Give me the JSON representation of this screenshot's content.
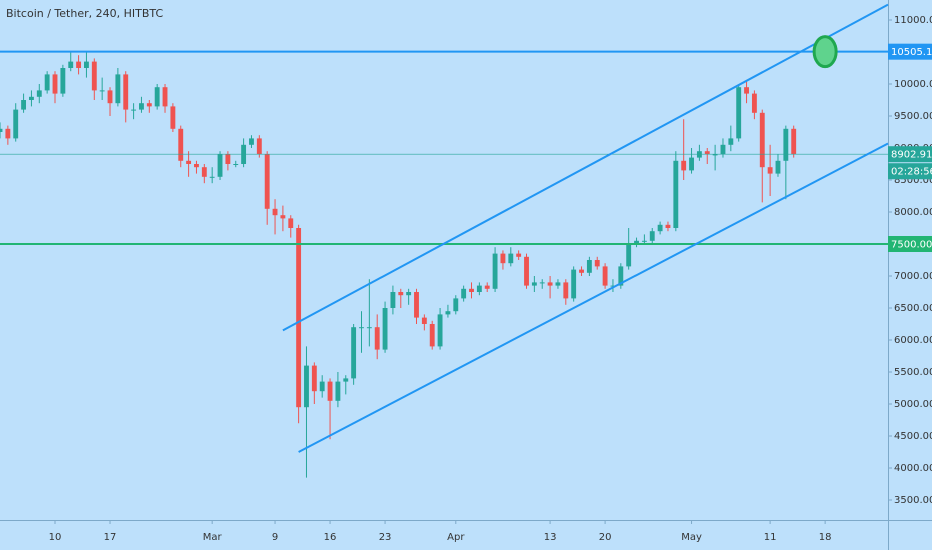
{
  "chart_data": {
    "type": "candlestick",
    "title": "Bitcoin / Tether, 240, HITBTC",
    "x": [
      "Feb 3",
      "Feb 4",
      "Feb 5",
      "Feb 6",
      "Feb 7",
      "Feb 8",
      "Feb 9",
      "Feb 10",
      "Feb 11",
      "Feb 12",
      "Feb 13",
      "Feb 14",
      "Feb 15",
      "Feb 16",
      "Feb 17",
      "Feb 18",
      "Feb 19",
      "Feb 20",
      "Feb 21",
      "Feb 22",
      "Feb 23",
      "Feb 24",
      "Feb 25",
      "Feb 26",
      "Feb 27",
      "Feb 28",
      "Feb 29",
      "Mar 1",
      "Mar 2",
      "Mar 3",
      "Mar 4",
      "Mar 5",
      "Mar 6",
      "Mar 7",
      "Mar 8",
      "Mar 9",
      "Mar 10",
      "Mar 11",
      "Mar 12",
      "Mar 13",
      "Mar 14",
      "Mar 15",
      "Mar 16",
      "Mar 17",
      "Mar 18",
      "Mar 19",
      "Mar 20",
      "Mar 21",
      "Mar 22",
      "Mar 23",
      "Mar 24",
      "Mar 25",
      "Mar 26",
      "Mar 27",
      "Mar 28",
      "Mar 29",
      "Mar 30",
      "Mar 31",
      "Apr 1",
      "Apr 2",
      "Apr 3",
      "Apr 4",
      "Apr 5",
      "Apr 6",
      "Apr 7",
      "Apr 8",
      "Apr 9",
      "Apr 10",
      "Apr 11",
      "Apr 12",
      "Apr 13",
      "Apr 14",
      "Apr 15",
      "Apr 16",
      "Apr 17",
      "Apr 18",
      "Apr 19",
      "Apr 20",
      "Apr 21",
      "Apr 22",
      "Apr 23",
      "Apr 24",
      "Apr 25",
      "Apr 26",
      "Apr 27",
      "Apr 28",
      "Apr 29",
      "Apr 30",
      "May 1",
      "May 2",
      "May 3",
      "May 4",
      "May 5",
      "May 6",
      "May 7",
      "May 8",
      "May 9",
      "May 10",
      "May 11",
      "May 12",
      "May 13",
      "May 14"
    ],
    "open": [
      9250,
      9300,
      9150,
      9600,
      9750,
      9800,
      9900,
      10150,
      9850,
      10250,
      10350,
      10250,
      10350,
      9900,
      9900,
      9700,
      10150,
      9600,
      9600,
      9700,
      9650,
      9950,
      9650,
      9300,
      8800,
      8750,
      8700,
      8550,
      8550,
      8900,
      8750,
      8750,
      9050,
      9150,
      8900,
      8050,
      7950,
      7900,
      7750,
      4950,
      5600,
      5200,
      5350,
      5050,
      5350,
      5400,
      6200,
      6200,
      6200,
      5850,
      6500,
      6750,
      6700,
      6750,
      6350,
      6250,
      5900,
      6400,
      6450,
      6650,
      6800,
      6750,
      6850,
      6800,
      7350,
      7200,
      7350,
      7300,
      6850,
      6900,
      6900,
      6850,
      6900,
      6650,
      7100,
      7050,
      7250,
      7150,
      6850,
      6850,
      7150,
      7500,
      7550,
      7550,
      7700,
      7800,
      7750,
      8800,
      8650,
      8850,
      8950,
      8900,
      8900,
      9050,
      9150,
      9950,
      9850,
      9550,
      8700,
      8600,
      8800,
      9300
    ],
    "high": [
      9400,
      9350,
      9700,
      9850,
      9900,
      10000,
      10200,
      10200,
      10300,
      10500,
      10450,
      10500,
      10400,
      10100,
      9950,
      10250,
      10200,
      9700,
      9800,
      9750,
      10000,
      10000,
      9700,
      9350,
      8950,
      8800,
      8750,
      8700,
      8950,
      8950,
      8800,
      9150,
      9200,
      9200,
      8950,
      8200,
      8100,
      7950,
      7800,
      5900,
      5650,
      5450,
      5400,
      5500,
      5450,
      6250,
      6450,
      6950,
      6400,
      6600,
      6850,
      6800,
      6800,
      6800,
      6400,
      6300,
      6500,
      6550,
      6700,
      6850,
      6900,
      6900,
      6900,
      7450,
      7400,
      7450,
      7400,
      7350,
      7000,
      6950,
      7000,
      6950,
      6950,
      7150,
      7150,
      7300,
      7300,
      7200,
      6950,
      7200,
      7750,
      7600,
      7650,
      7750,
      7850,
      7850,
      8950,
      9450,
      9000,
      9050,
      9000,
      9050,
      9150,
      9350,
      10000,
      10050,
      9900,
      9600,
      9050,
      8900,
      9350,
      9350
    ],
    "low": [
      9150,
      9050,
      9100,
      9550,
      9650,
      9700,
      9850,
      9700,
      9800,
      10200,
      10150,
      10100,
      9750,
      9750,
      9500,
      9650,
      9400,
      9450,
      9550,
      9550,
      9600,
      9550,
      9250,
      8700,
      8550,
      8600,
      8450,
      8450,
      8500,
      8650,
      8700,
      8700,
      9000,
      8850,
      7800,
      7650,
      7700,
      7600,
      4700,
      3850,
      5000,
      5100,
      4450,
      4950,
      5150,
      5300,
      5800,
      5900,
      5700,
      5800,
      6400,
      6500,
      6550,
      6250,
      6150,
      5850,
      5850,
      6350,
      6400,
      6600,
      6650,
      6700,
      6750,
      6750,
      7100,
      7150,
      7250,
      6800,
      6750,
      6800,
      6650,
      6800,
      6550,
      6600,
      7000,
      7000,
      7100,
      6800,
      6750,
      6800,
      7100,
      7450,
      7500,
      7500,
      7650,
      7700,
      7700,
      8500,
      8600,
      8800,
      8750,
      8650,
      8850,
      8950,
      9100,
      9700,
      9450,
      8150,
      8250,
      8550,
      8200,
      8850
    ],
    "close": [
      9300,
      9150,
      9600,
      9750,
      9800,
      9900,
      10150,
      9850,
      10250,
      10350,
      10250,
      10350,
      9900,
      9900,
      9700,
      10150,
      9600,
      9600,
      9700,
      9650,
      9950,
      9650,
      9300,
      8800,
      8750,
      8700,
      8550,
      8550,
      8900,
      8750,
      8750,
      9050,
      9150,
      8900,
      8050,
      7950,
      7900,
      7750,
      4950,
      5600,
      5200,
      5350,
      5050,
      5350,
      5400,
      6200,
      6200,
      6200,
      5850,
      6500,
      6750,
      6700,
      6750,
      6350,
      6250,
      5900,
      6400,
      6450,
      6650,
      6800,
      6750,
      6850,
      6800,
      7350,
      7200,
      7350,
      7300,
      6850,
      6900,
      6900,
      6850,
      6900,
      6650,
      7100,
      7050,
      7250,
      7150,
      6850,
      6850,
      7150,
      7500,
      7550,
      7550,
      7700,
      7800,
      7750,
      8800,
      8650,
      8850,
      8950,
      8900,
      8900,
      9050,
      9150,
      9950,
      9850,
      9550,
      8700,
      8600,
      8800,
      9300,
      8902.91
    ],
    "up_color": "#26a69a",
    "down_color": "#ef5350",
    "xlim": [
      "Feb 3",
      "May 26"
    ],
    "xticks": [
      {
        "value": "Feb 10",
        "label": "10"
      },
      {
        "value": "Feb 17",
        "label": "17"
      },
      {
        "value": "Mar 1",
        "label": "Mar"
      },
      {
        "value": "Mar 9",
        "label": "9"
      },
      {
        "value": "Mar 16",
        "label": "16"
      },
      {
        "value": "Mar 23",
        "label": "23"
      },
      {
        "value": "Apr 1",
        "label": "Apr"
      },
      {
        "value": "Apr 13",
        "label": "13"
      },
      {
        "value": "Apr 20",
        "label": "20"
      },
      {
        "value": "May 1",
        "label": "May"
      },
      {
        "value": "May 11",
        "label": "11"
      },
      {
        "value": "May 18",
        "label": "18"
      }
    ],
    "ylim": [
      3187.5,
      11312.5
    ],
    "yticks": [
      {
        "value": 3500,
        "label": "3500.00"
      },
      {
        "value": 4000,
        "label": "4000.00"
      },
      {
        "value": 4500,
        "label": "4500.00"
      },
      {
        "value": 5000,
        "label": "5000.00"
      },
      {
        "value": 5500,
        "label": "5500.00"
      },
      {
        "value": 6000,
        "label": "6000.00"
      },
      {
        "value": 6500,
        "label": "6500.00"
      },
      {
        "value": 7000,
        "label": "7000.00"
      },
      {
        "value": 7500,
        "label": "7500.00"
      },
      {
        "value": 8000,
        "label": "8000.00"
      },
      {
        "value": 8500,
        "label": "8500.00"
      },
      {
        "value": 9000,
        "label": "9000.00"
      },
      {
        "value": 9500,
        "label": "9500.00"
      },
      {
        "value": 10000,
        "label": "10000.00"
      },
      {
        "value": 10500,
        "label": "10500.00"
      },
      {
        "value": 11000,
        "label": "11000.00"
      }
    ],
    "grid": false,
    "hlines": [
      {
        "value": 10505.14,
        "color": "#2196f3",
        "width": 2
      },
      {
        "value": 7500,
        "value_label": "7500.00",
        "color": "#22b573",
        "width": 2
      },
      {
        "value": 8902.91,
        "color": "#26a69a",
        "width": 0.6,
        "countdown": "02:28:56"
      }
    ],
    "trendlines": [
      {
        "x": [
          "Mar 10",
          "May 8"
        ],
        "y": [
          6150,
          10050
        ],
        "color": "#2196f3"
      },
      {
        "x": [
          "Mar 12",
          "May 12"
        ],
        "y": [
          4250,
          8170
        ],
        "color": "#2196f3"
      }
    ],
    "marker": {
      "x": "May 18",
      "y": 10505.14,
      "color": "#5fd38d",
      "edge": "#1fa84f"
    }
  }
}
